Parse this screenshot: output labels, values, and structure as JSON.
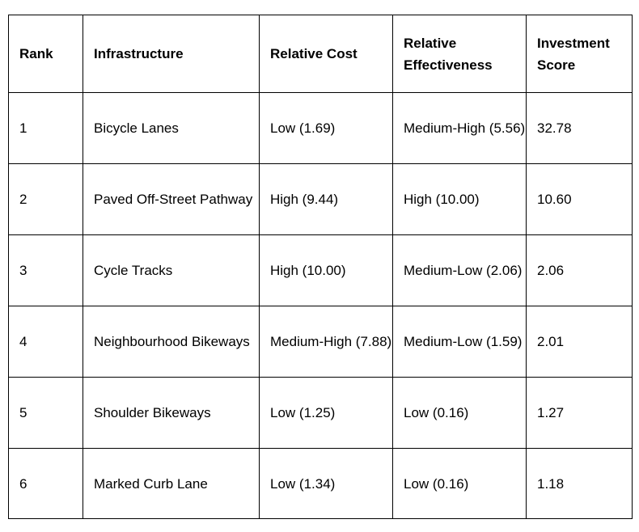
{
  "table": {
    "headers": {
      "rank": "Rank",
      "infrastructure": "Infrastructure",
      "relative_cost": "Relative Cost",
      "relative_effectiveness": "Relative Effectiveness",
      "investment_score": "Investment Score"
    },
    "rows": [
      {
        "rank": "1",
        "infrastructure": "Bicycle Lanes",
        "relative_cost": "Low (1.69)",
        "relative_effectiveness": "Medium-High (5.56)",
        "investment_score": "32.78"
      },
      {
        "rank": "2",
        "infrastructure": "Paved Off-Street Pathway",
        "relative_cost": "High (9.44)",
        "relative_effectiveness": "High (10.00)",
        "investment_score": "10.60"
      },
      {
        "rank": "3",
        "infrastructure": "Cycle Tracks",
        "relative_cost": "High (10.00)",
        "relative_effectiveness": "Medium-Low (2.06)",
        "investment_score": "2.06"
      },
      {
        "rank": "4",
        "infrastructure": "Neighbourhood Bikeways",
        "relative_cost": "Medium-High (7.88)",
        "relative_effectiveness": "Medium-Low (1.59)",
        "investment_score": "2.01"
      },
      {
        "rank": "5",
        "infrastructure": "Shoulder Bikeways",
        "relative_cost": "Low (1.25)",
        "relative_effectiveness": "Low (0.16)",
        "investment_score": "1.27"
      },
      {
        "rank": "6",
        "infrastructure": "Marked Curb Lane",
        "relative_cost": "Low (1.34)",
        "relative_effectiveness": "Low (0.16)",
        "investment_score": "1.18"
      }
    ]
  }
}
